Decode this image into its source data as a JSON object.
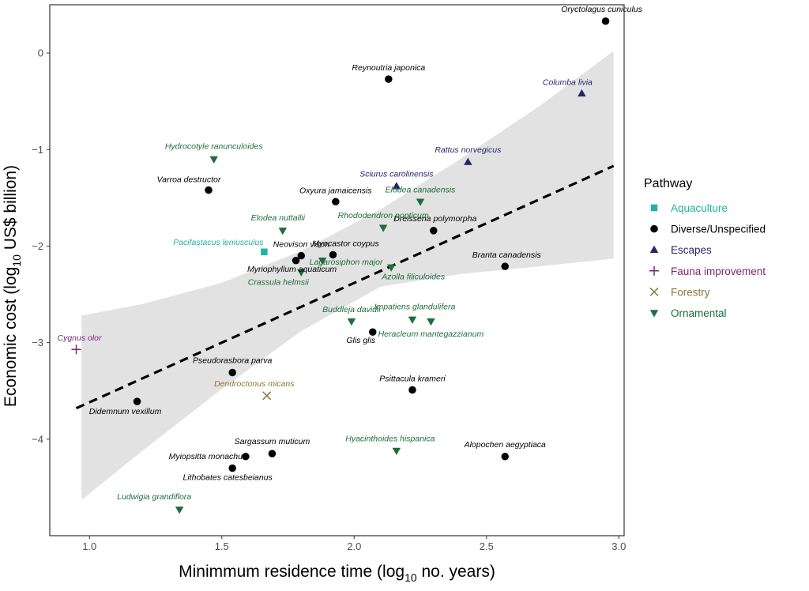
{
  "chart_data": {
    "type": "scatter",
    "xlabel_main": "Minimmum residence time (log",
    "xlabel_sub": "10",
    "xlabel_tail": " no. years)",
    "ylabel_main": "Economic cost (log",
    "ylabel_sub": "10",
    "ylabel_tail": " US$ billion)",
    "xlim": [
      0.85,
      3.02
    ],
    "ylim": [
      -5.0,
      0.5
    ],
    "x_ticks": [
      1.0,
      1.5,
      2.0,
      2.5,
      3.0
    ],
    "x_tick_labels": [
      "1.0",
      "1.5",
      "2.0",
      "2.5",
      "3.0"
    ],
    "y_ticks": [
      0,
      -1,
      -2,
      -3,
      -4
    ],
    "y_tick_labels": [
      "0",
      "−1",
      "−2",
      "−3",
      "−4"
    ],
    "grid": false,
    "legend_position": "right",
    "legend_title": "Pathway",
    "groups": [
      {
        "name": "Aquaculture",
        "color": "#1fb3a7",
        "shape": "square"
      },
      {
        "name": "Diverse/Unspecified",
        "color": "#000000",
        "shape": "circle"
      },
      {
        "name": "Escapes",
        "color": "#27256f",
        "shape": "triangle-up"
      },
      {
        "name": "Fauna improvement",
        "color": "#7b2877",
        "shape": "plus"
      },
      {
        "name": "Forestry",
        "color": "#8c7838",
        "shape": "cross"
      },
      {
        "name": "Ornamental",
        "color": "#1e6e3b",
        "shape": "triangle-down"
      }
    ],
    "trend": {
      "style": "dashed",
      "x": [
        0.95,
        2.98
      ],
      "y": [
        -3.68,
        -1.17
      ]
    },
    "confidence_band": {
      "x": [
        0.97,
        1.2,
        1.5,
        1.8,
        2.1,
        2.4,
        2.7,
        2.98
      ],
      "upper": [
        -2.72,
        -2.6,
        -2.38,
        -2.05,
        -1.62,
        -1.1,
        -0.55,
        0.02
      ],
      "lower": [
        -4.63,
        -4.12,
        -3.48,
        -2.88,
        -2.42,
        -2.29,
        -2.21,
        -2.13
      ]
    },
    "points": [
      {
        "name": "Oryctolagus cuniculus",
        "x": 2.95,
        "y": 0.33,
        "group": "Diverse/Unspecified"
      },
      {
        "name": "Reynoutria japonica",
        "x": 2.13,
        "y": -0.27,
        "group": "Diverse/Unspecified"
      },
      {
        "name": "Columba livia",
        "x": 2.86,
        "y": -0.42,
        "group": "Escapes"
      },
      {
        "name": "Hydrocotyle ranunculoides",
        "x": 1.47,
        "y": -1.1,
        "group": "Ornamental"
      },
      {
        "name": "Rattus norvegicus",
        "x": 2.43,
        "y": -1.13,
        "group": "Escapes"
      },
      {
        "name": "Varroa destructor",
        "x": 1.45,
        "y": -1.42,
        "group": "Diverse/Unspecified"
      },
      {
        "name": "Sciurus carolinensis",
        "x": 2.16,
        "y": -1.38,
        "group": "Escapes"
      },
      {
        "name": "Oxyura jamaicensis",
        "x": 1.93,
        "y": -1.54,
        "group": "Diverse/Unspecified"
      },
      {
        "name": "Elodea canadensis",
        "x": 2.25,
        "y": -1.54,
        "group": "Ornamental"
      },
      {
        "name": "Elodea nuttallii",
        "x": 1.73,
        "y": -1.84,
        "group": "Ornamental"
      },
      {
        "name": "Dreissena polymorpha",
        "x": 2.3,
        "y": -1.84,
        "group": "Diverse/Unspecified"
      },
      {
        "name": "Rhododendron ponticum",
        "x": 2.11,
        "y": -1.81,
        "group": "Ornamental"
      },
      {
        "name": "Pacifastacus leniusculus",
        "x": 1.66,
        "y": -2.06,
        "group": "Aquaculture"
      },
      {
        "name": "Neovison vison",
        "x": 1.8,
        "y": -2.1,
        "group": "Diverse/Unspecified"
      },
      {
        "name": "Myocastor coypus",
        "x": 1.92,
        "y": -2.09,
        "group": "Diverse/Unspecified"
      },
      {
        "name": "Myriophyllum aquaticum",
        "x": 1.78,
        "y": -2.15,
        "group": "Diverse/Unspecified"
      },
      {
        "name": "Lagarosiphon major",
        "x": 1.88,
        "y": -2.15,
        "group": "Ornamental"
      },
      {
        "name": "Crassula helmsii",
        "x": 1.8,
        "y": -2.27,
        "group": "Ornamental"
      },
      {
        "name": "Azolla filiculoides",
        "x": 2.14,
        "y": -2.22,
        "group": "Ornamental"
      },
      {
        "name": "Branta canadensis",
        "x": 2.57,
        "y": -2.21,
        "group": "Diverse/Unspecified"
      },
      {
        "name": "Buddleja davidii",
        "x": 1.99,
        "y": -2.78,
        "group": "Ornamental"
      },
      {
        "name": "Impatiens glandulifera",
        "x": 2.22,
        "y": -2.76,
        "group": "Ornamental"
      },
      {
        "name": "Heracleum mantegazzianum",
        "x": 2.29,
        "y": -2.78,
        "group": "Ornamental"
      },
      {
        "name": "Glis glis",
        "x": 2.07,
        "y": -2.89,
        "group": "Diverse/Unspecified"
      },
      {
        "name": "Cygnus olor",
        "x": 0.95,
        "y": -3.07,
        "group": "Fauna improvement"
      },
      {
        "name": "Pseudorasbora parva",
        "x": 1.54,
        "y": -3.31,
        "group": "Diverse/Unspecified"
      },
      {
        "name": "Dendroctonus micans",
        "x": 1.67,
        "y": -3.55,
        "group": "Forestry"
      },
      {
        "name": "Psittacula krameri",
        "x": 2.22,
        "y": -3.49,
        "group": "Diverse/Unspecified"
      },
      {
        "name": "Didemnum vexillum",
        "x": 1.18,
        "y": -3.61,
        "group": "Diverse/Unspecified"
      },
      {
        "name": "Hyacinthoides hispanica",
        "x": 2.16,
        "y": -4.12,
        "group": "Ornamental"
      },
      {
        "name": "Myiopsitta monachus",
        "x": 1.59,
        "y": -4.18,
        "group": "Diverse/Unspecified"
      },
      {
        "name": "Sargassum muticum",
        "x": 1.69,
        "y": -4.15,
        "group": "Diverse/Unspecified"
      },
      {
        "name": "Alopochen aegyptiaca",
        "x": 2.57,
        "y": -4.18,
        "group": "Diverse/Unspecified"
      },
      {
        "name": "Lithobates catesbeianus",
        "x": 1.54,
        "y": -4.3,
        "group": "Diverse/Unspecified"
      },
      {
        "name": "Ludwigia grandiflora",
        "x": 1.34,
        "y": -4.73,
        "group": "Ornamental"
      }
    ]
  }
}
